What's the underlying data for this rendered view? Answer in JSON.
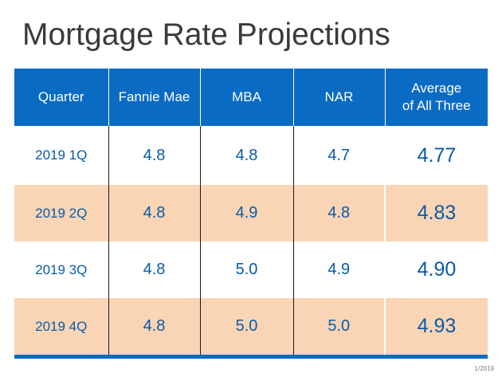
{
  "title": "Mortgage Rate Projections",
  "footer_date": "1/2019",
  "colors": {
    "header_blue": "#0a6bc4",
    "alt_row": "#f9d5b5",
    "value_text": "#0a5aa8"
  },
  "chart_data": {
    "type": "table",
    "title": "Mortgage Rate Projections",
    "columns": [
      "Quarter",
      "Fannie Mae",
      "MBA",
      "NAR",
      "Average of All Three"
    ],
    "header": {
      "quarter": "Quarter",
      "fannie_mae": "Fannie Mae",
      "mba": "MBA",
      "nar": "NAR",
      "average_line1": "Average",
      "average_line2": "of All Three"
    },
    "rows": [
      {
        "quarter": "2019 1Q",
        "fannie_mae": "4.8",
        "mba": "4.8",
        "nar": "4.7",
        "average": "4.77"
      },
      {
        "quarter": "2019 2Q",
        "fannie_mae": "4.8",
        "mba": "4.9",
        "nar": "4.8",
        "average": "4.83"
      },
      {
        "quarter": "2019 3Q",
        "fannie_mae": "4.8",
        "mba": "5.0",
        "nar": "4.9",
        "average": "4.90"
      },
      {
        "quarter": "2019 4Q",
        "fannie_mae": "4.8",
        "mba": "5.0",
        "nar": "5.0",
        "average": "4.93"
      }
    ]
  }
}
